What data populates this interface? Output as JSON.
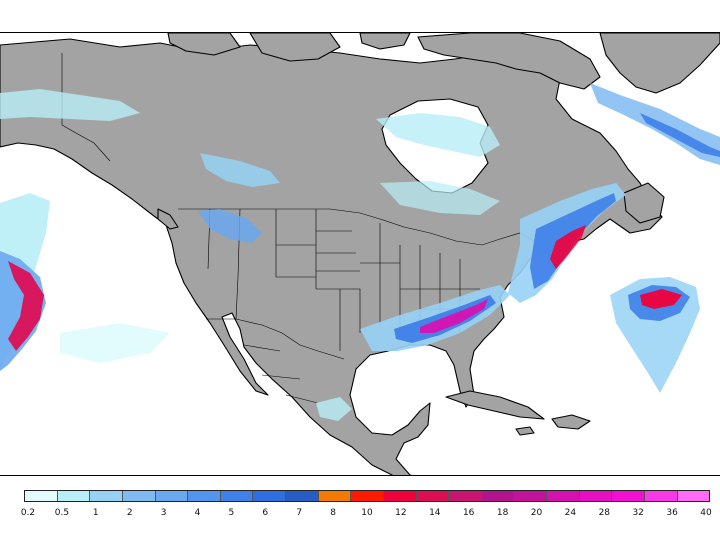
{
  "colors": {
    "land": "#a3a3a3",
    "ocean": "#ffffff",
    "coastline": "#000000",
    "boundaries": "#000000"
  },
  "legend": {
    "labels": [
      "0.2",
      "0.5",
      "1",
      "2",
      "3",
      "4",
      "5",
      "6",
      "7",
      "8",
      "10",
      "12",
      "14",
      "16",
      "18",
      "20",
      "24",
      "28",
      "32",
      "36",
      "40"
    ],
    "colors": [
      "#e2fbfc",
      "#b8eef7",
      "#97d2f5",
      "#7fbbf2",
      "#6aa8f0",
      "#5294ee",
      "#3f80e9",
      "#2f6ee0",
      "#275cc4",
      "#f57a00",
      "#ff1a00",
      "#f0003a",
      "#dc0f55",
      "#c91470",
      "#b3148d",
      "#c3139d",
      "#d611b0",
      "#e60fc2",
      "#f20ed3",
      "#fb38e7",
      "#ff6cf4"
    ]
  }
}
